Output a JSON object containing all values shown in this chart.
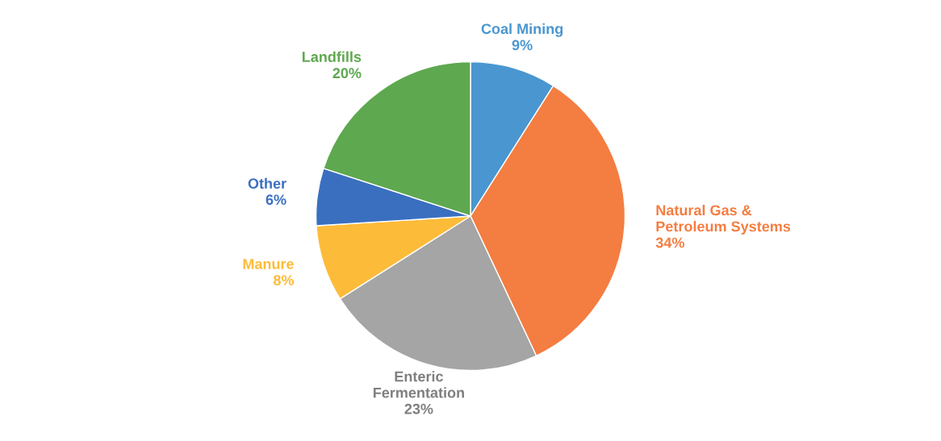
{
  "chart_data": {
    "type": "pie",
    "categories": [
      "Coal Mining",
      "Natural Gas & Petroleum Systems",
      "Enteric Fermentation",
      "Manure",
      "Other",
      "Landfills"
    ],
    "values": [
      9,
      34,
      23,
      8,
      6,
      20
    ],
    "value_labels": [
      "9%",
      "34%",
      "23%",
      "8%",
      "6%",
      "20%"
    ],
    "colors": [
      "#4a96d0",
      "#f47d41",
      "#a5a5a5",
      "#fdbb3a",
      "#3a6fc0",
      "#5ea84f"
    ]
  }
}
